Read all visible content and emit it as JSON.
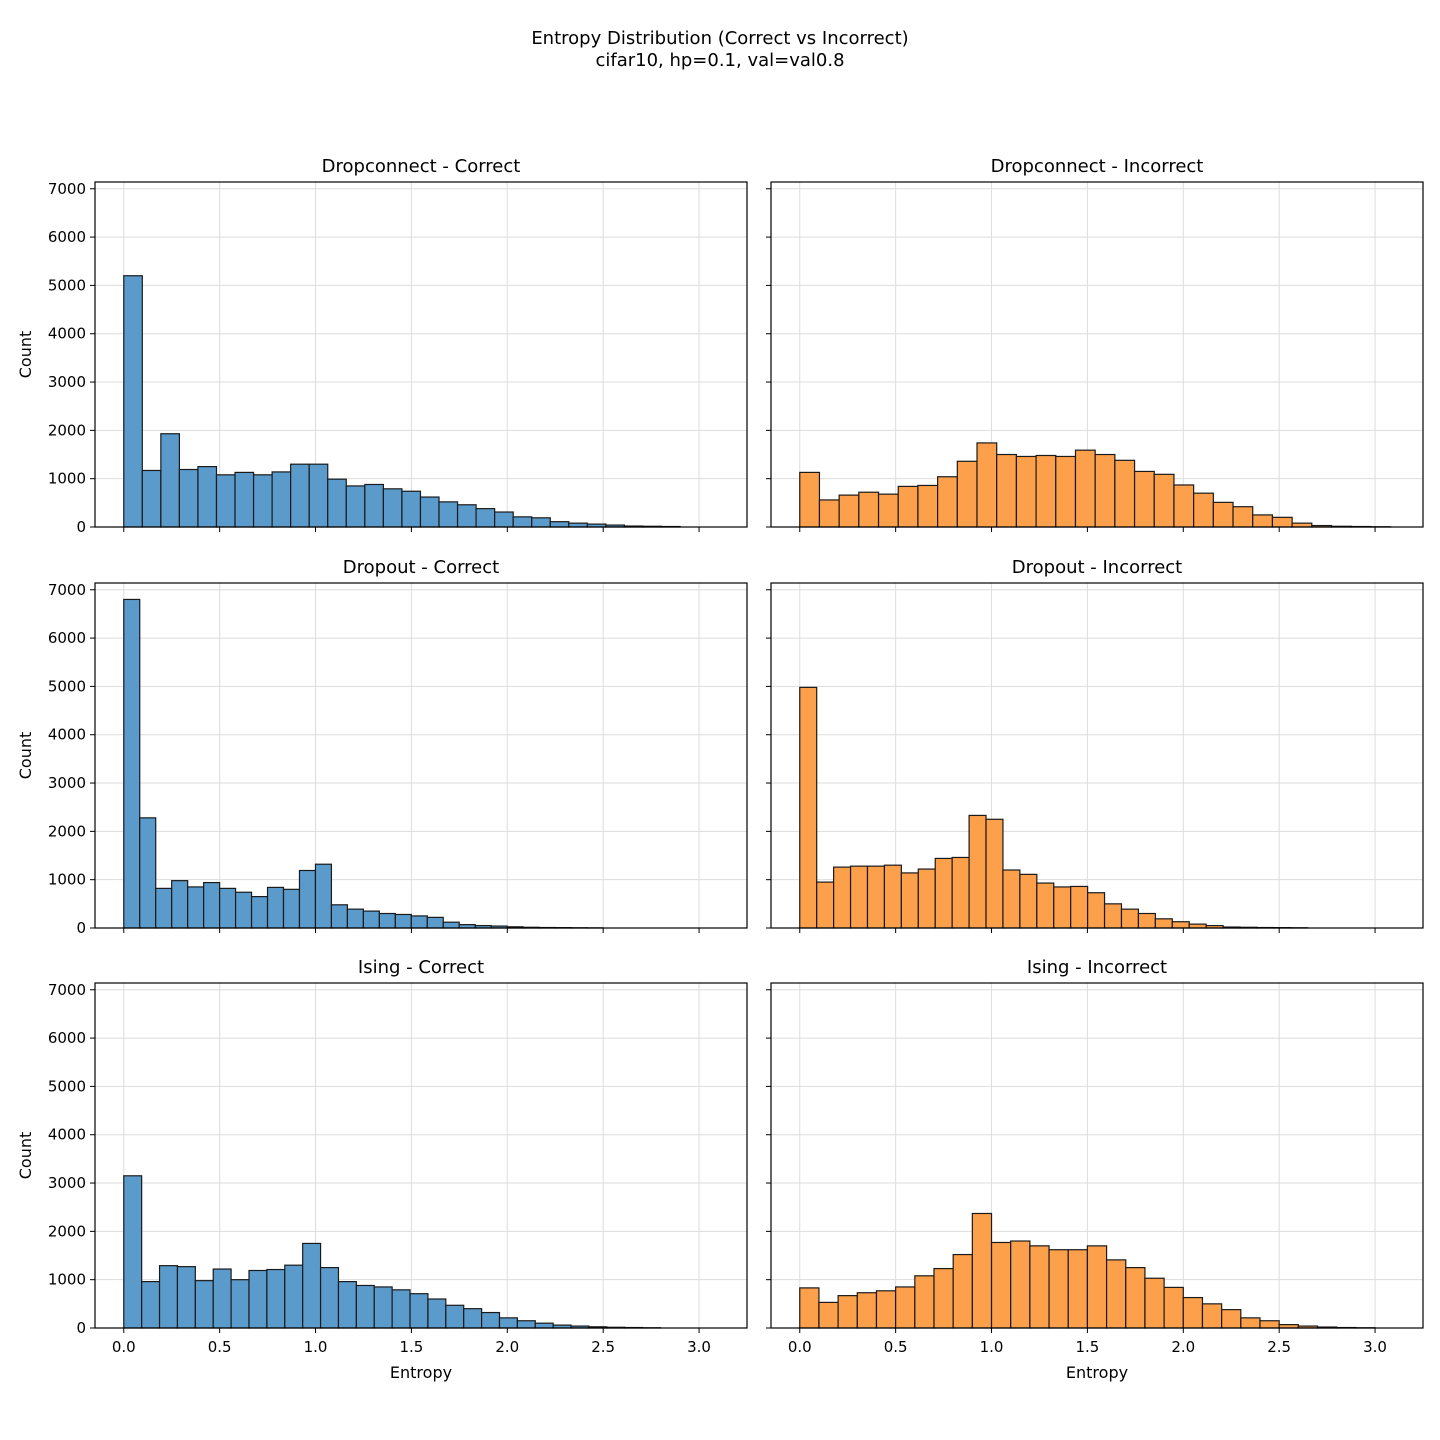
{
  "figure": {
    "title": "Entropy Distribution (Correct vs Incorrect)",
    "subtitle": "cifar10, hp=0.1, val=val0.8"
  },
  "colors": {
    "correct": "#5b9bcc",
    "incorrect": "#fca04c",
    "edge": "#1a1a1a",
    "grid": "#dddddd"
  },
  "chart_data": [
    {
      "type": "bar",
      "title": "Dropconnect - Correct",
      "series_kind": "correct",
      "xlabel": "",
      "ylabel": "Count",
      "bin_start": 0.0,
      "bin_width": 0.0967,
      "values": [
        5200,
        1170,
        1930,
        1190,
        1250,
        1080,
        1130,
        1080,
        1140,
        1300,
        1300,
        990,
        850,
        880,
        790,
        740,
        620,
        520,
        460,
        380,
        310,
        210,
        190,
        110,
        80,
        60,
        40,
        20,
        15,
        10
      ],
      "xlim": [
        -0.15,
        3.25
      ],
      "ylim": [
        0,
        7140
      ],
      "xticks": [
        "0.0",
        "0.5",
        "1.0",
        "1.5",
        "2.0",
        "2.5",
        "3.0"
      ],
      "yticks": [
        "0",
        "1000",
        "2000",
        "3000",
        "4000",
        "5000",
        "6000",
        "7000"
      ]
    },
    {
      "type": "bar",
      "title": "Dropconnect - Incorrect",
      "series_kind": "incorrect",
      "xlabel": "",
      "ylabel": "",
      "bin_start": 0.0,
      "bin_width": 0.1027,
      "values": [
        1130,
        560,
        660,
        720,
        680,
        840,
        860,
        1040,
        1360,
        1740,
        1500,
        1460,
        1480,
        1460,
        1590,
        1500,
        1380,
        1150,
        1090,
        870,
        700,
        510,
        420,
        250,
        200,
        80,
        30,
        15,
        10,
        5
      ],
      "xlim": [
        -0.15,
        3.25
      ],
      "ylim": [
        0,
        7140
      ],
      "xticks": [
        "0.0",
        "0.5",
        "1.0",
        "1.5",
        "2.0",
        "2.5",
        "3.0"
      ],
      "yticks": [
        "0",
        "1000",
        "2000",
        "3000",
        "4000",
        "5000",
        "6000",
        "7000"
      ]
    },
    {
      "type": "bar",
      "title": "Dropout - Correct",
      "series_kind": "correct",
      "xlabel": "",
      "ylabel": "Count",
      "bin_start": 0.0,
      "bin_width": 0.0833,
      "values": [
        6800,
        2280,
        820,
        980,
        850,
        940,
        820,
        740,
        650,
        840,
        800,
        1190,
        1320,
        480,
        390,
        350,
        300,
        280,
        250,
        220,
        120,
        70,
        50,
        40,
        25,
        15,
        10,
        8,
        5,
        3
      ],
      "xlim": [
        -0.15,
        3.25
      ],
      "ylim": [
        0,
        7140
      ],
      "xticks": [
        "0.0",
        "0.5",
        "1.0",
        "1.5",
        "2.0",
        "2.5",
        "3.0"
      ],
      "yticks": [
        "0",
        "1000",
        "2000",
        "3000",
        "4000",
        "5000",
        "6000",
        "7000"
      ]
    },
    {
      "type": "bar",
      "title": "Dropout - Incorrect",
      "series_kind": "incorrect",
      "xlabel": "",
      "ylabel": "",
      "bin_start": 0.0,
      "bin_width": 0.0883,
      "values": [
        4980,
        950,
        1260,
        1280,
        1280,
        1300,
        1140,
        1220,
        1440,
        1460,
        2330,
        2250,
        1200,
        1110,
        930,
        850,
        860,
        730,
        500,
        390,
        300,
        190,
        130,
        80,
        50,
        20,
        15,
        10,
        8,
        5
      ],
      "xlim": [
        -0.15,
        3.25
      ],
      "ylim": [
        0,
        7140
      ],
      "xticks": [
        "0.0",
        "0.5",
        "1.0",
        "1.5",
        "2.0",
        "2.5",
        "3.0"
      ],
      "yticks": [
        "0",
        "1000",
        "2000",
        "3000",
        "4000",
        "5000",
        "6000",
        "7000"
      ]
    },
    {
      "type": "bar",
      "title": "Ising - Correct",
      "series_kind": "correct",
      "xlabel": "Entropy",
      "ylabel": "Count",
      "bin_start": 0.0,
      "bin_width": 0.0933,
      "values": [
        3150,
        960,
        1290,
        1270,
        980,
        1220,
        1000,
        1190,
        1210,
        1300,
        1750,
        1250,
        960,
        880,
        850,
        790,
        710,
        600,
        470,
        400,
        320,
        210,
        150,
        100,
        60,
        40,
        25,
        15,
        10,
        5
      ],
      "xlim": [
        -0.15,
        3.25
      ],
      "ylim": [
        0,
        7140
      ],
      "xticks": [
        "0.0",
        "0.5",
        "1.0",
        "1.5",
        "2.0",
        "2.5",
        "3.0"
      ],
      "yticks": [
        "0",
        "1000",
        "2000",
        "3000",
        "4000",
        "5000",
        "6000",
        "7000"
      ]
    },
    {
      "type": "bar",
      "title": "Ising - Incorrect",
      "series_kind": "incorrect",
      "xlabel": "Entropy",
      "ylabel": "",
      "bin_start": 0.0,
      "bin_width": 0.1,
      "values": [
        830,
        530,
        670,
        730,
        770,
        850,
        1080,
        1230,
        1520,
        2370,
        1770,
        1800,
        1700,
        1620,
        1620,
        1700,
        1410,
        1250,
        1030,
        840,
        630,
        500,
        380,
        210,
        150,
        70,
        40,
        20,
        10,
        5
      ],
      "xlim": [
        -0.15,
        3.25
      ],
      "ylim": [
        0,
        7140
      ],
      "xticks": [
        "0.0",
        "0.5",
        "1.0",
        "1.5",
        "2.0",
        "2.5",
        "3.0"
      ],
      "yticks": [
        "0",
        "1000",
        "2000",
        "3000",
        "4000",
        "5000",
        "6000",
        "7000"
      ]
    }
  ]
}
